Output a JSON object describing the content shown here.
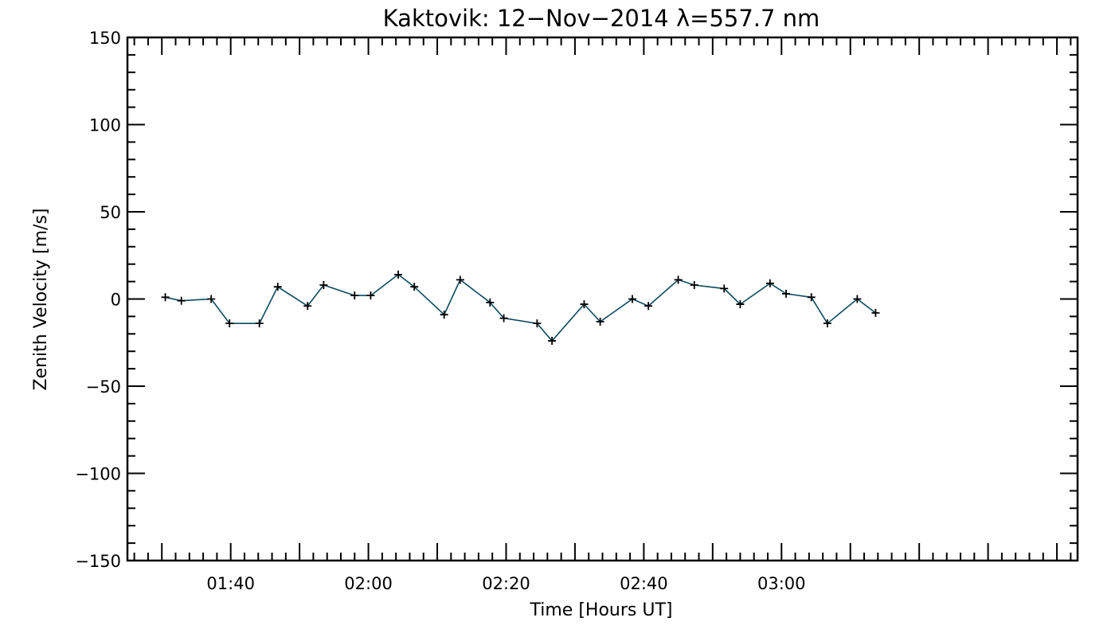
{
  "chart_data": {
    "type": "line",
    "title": "Kaktovik: 12−Nov−2014 λ=557.7 nm",
    "xlabel": "Time [Hours UT]",
    "ylabel": "Zenith Velocity [m/s]",
    "xlim": [
      "01:25",
      "03:43"
    ],
    "ylim": [
      -150,
      150
    ],
    "x_ticks": [
      "01:40",
      "02:00",
      "02:20",
      "02:40",
      "03:00"
    ],
    "y_ticks": [
      150,
      100,
      50,
      0,
      -50,
      -100,
      -150
    ],
    "y_tick_labels": [
      "150",
      "100",
      "50",
      "0",
      "−50",
      "−100",
      "−150"
    ],
    "grid": false,
    "line_color": "#0b4a5e",
    "marker": "plus",
    "marker_color": "#000000",
    "series": [
      {
        "x": [
          "01:30:30",
          "01:32:50",
          "01:37:10",
          "01:39:50",
          "01:44:10",
          "01:46:50",
          "01:51:10",
          "01:53:30",
          "01:58:00",
          "02:00:20",
          "02:04:20",
          "02:06:40",
          "02:11:00",
          "02:13:20",
          "02:17:40",
          "02:19:40",
          "02:24:30",
          "02:26:40",
          "02:31:20",
          "02:33:40",
          "02:38:20",
          "02:40:40",
          "02:45:00",
          "02:47:20",
          "02:51:40",
          "02:54:00",
          "02:58:20",
          "03:00:40",
          "03:04:20",
          "03:06:40",
          "03:11:00",
          "03:13:40"
        ],
        "values": [
          1,
          -1,
          0,
          -14,
          -14,
          7,
          -4,
          8,
          2,
          2,
          14,
          7,
          -9,
          11,
          -2,
          -11,
          -14,
          -24,
          -3,
          -13,
          0,
          -4,
          11,
          8,
          6,
          -3,
          9,
          3,
          1,
          -14,
          0,
          -8
        ]
      }
    ]
  }
}
